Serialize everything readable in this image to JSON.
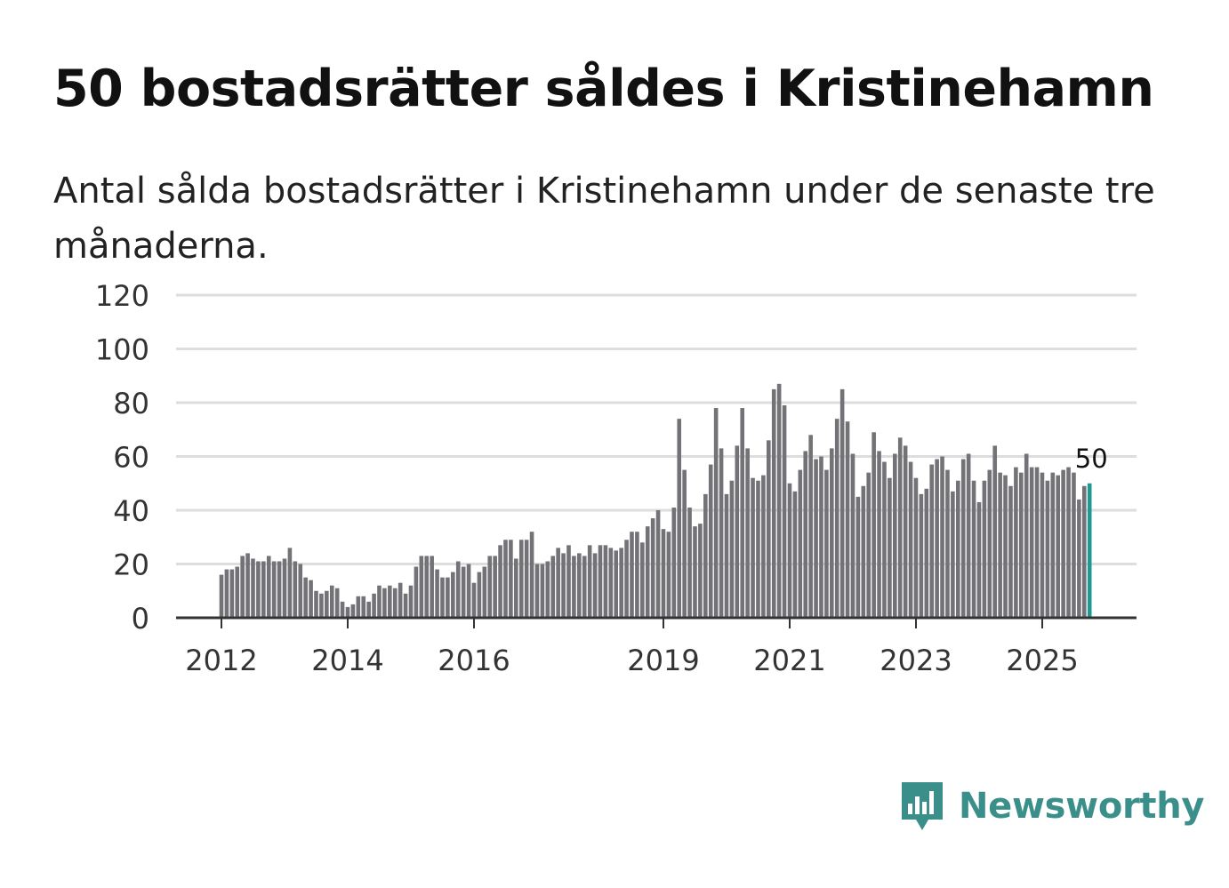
{
  "title": "50 bostadsrätter såldes i Kristinehamn",
  "subtitle": "Antal sålda bostadsrätter i Kristinehamn under de senaste tre månaderna.",
  "brand": {
    "name": "Newsworthy",
    "color": "#3a8f8b",
    "icon": "newsworthy-logo-icon"
  },
  "colors": {
    "bar": "#737277",
    "highlight": "#1e9a95",
    "grid": "#dddddd",
    "axis": "#333333"
  },
  "chart_data": {
    "type": "bar",
    "title": "50 bostadsrätter såldes i Kristinehamn",
    "ylim": [
      0,
      120
    ],
    "yticks": [
      0,
      20,
      40,
      60,
      80,
      100,
      120
    ],
    "yticklabels": [
      "0",
      "20",
      "40",
      "60",
      "80",
      "100",
      "120"
    ],
    "xticklabels": [
      "2012",
      "2014",
      "2016",
      "2019",
      "2021",
      "2023",
      "2025"
    ],
    "xtick_positions": [
      2012,
      2014,
      2016,
      2019,
      2021,
      2023,
      2025
    ],
    "x_start": 2012.0,
    "x_step": 0.08333,
    "values": [
      16,
      18,
      18,
      19,
      23,
      24,
      22,
      21,
      21,
      23,
      21,
      21,
      22,
      26,
      21,
      20,
      15,
      14,
      10,
      9,
      10,
      12,
      11,
      6,
      4,
      5,
      8,
      8,
      6,
      9,
      12,
      11,
      12,
      11,
      13,
      9,
      12,
      19,
      23,
      23,
      23,
      18,
      15,
      15,
      17,
      21,
      19,
      20,
      13,
      17,
      19,
      23,
      23,
      27,
      29,
      29,
      22,
      29,
      29,
      32,
      20,
      20,
      21,
      23,
      26,
      24,
      27,
      23,
      24,
      23,
      27,
      24,
      27,
      27,
      26,
      25,
      26,
      29,
      32,
      32,
      28,
      34,
      37,
      40,
      33,
      32,
      41,
      74,
      55,
      41,
      34,
      35,
      46,
      57,
      78,
      63,
      46,
      51,
      64,
      78,
      63,
      52,
      51,
      53,
      66,
      85,
      87,
      79,
      50,
      47,
      55,
      62,
      68,
      59,
      60,
      55,
      63,
      74,
      85,
      73,
      61,
      45,
      49,
      54,
      69,
      62,
      58,
      52,
      61,
      67,
      64,
      58,
      52,
      46,
      48,
      57,
      59,
      60,
      55,
      47,
      51,
      59,
      61,
      51,
      43,
      51,
      55,
      64,
      54,
      53,
      49,
      56,
      54,
      61,
      56,
      56,
      54,
      51,
      54,
      53,
      55,
      56,
      54,
      44,
      49,
      50
    ],
    "highlight_last": true,
    "end_label": "50"
  }
}
